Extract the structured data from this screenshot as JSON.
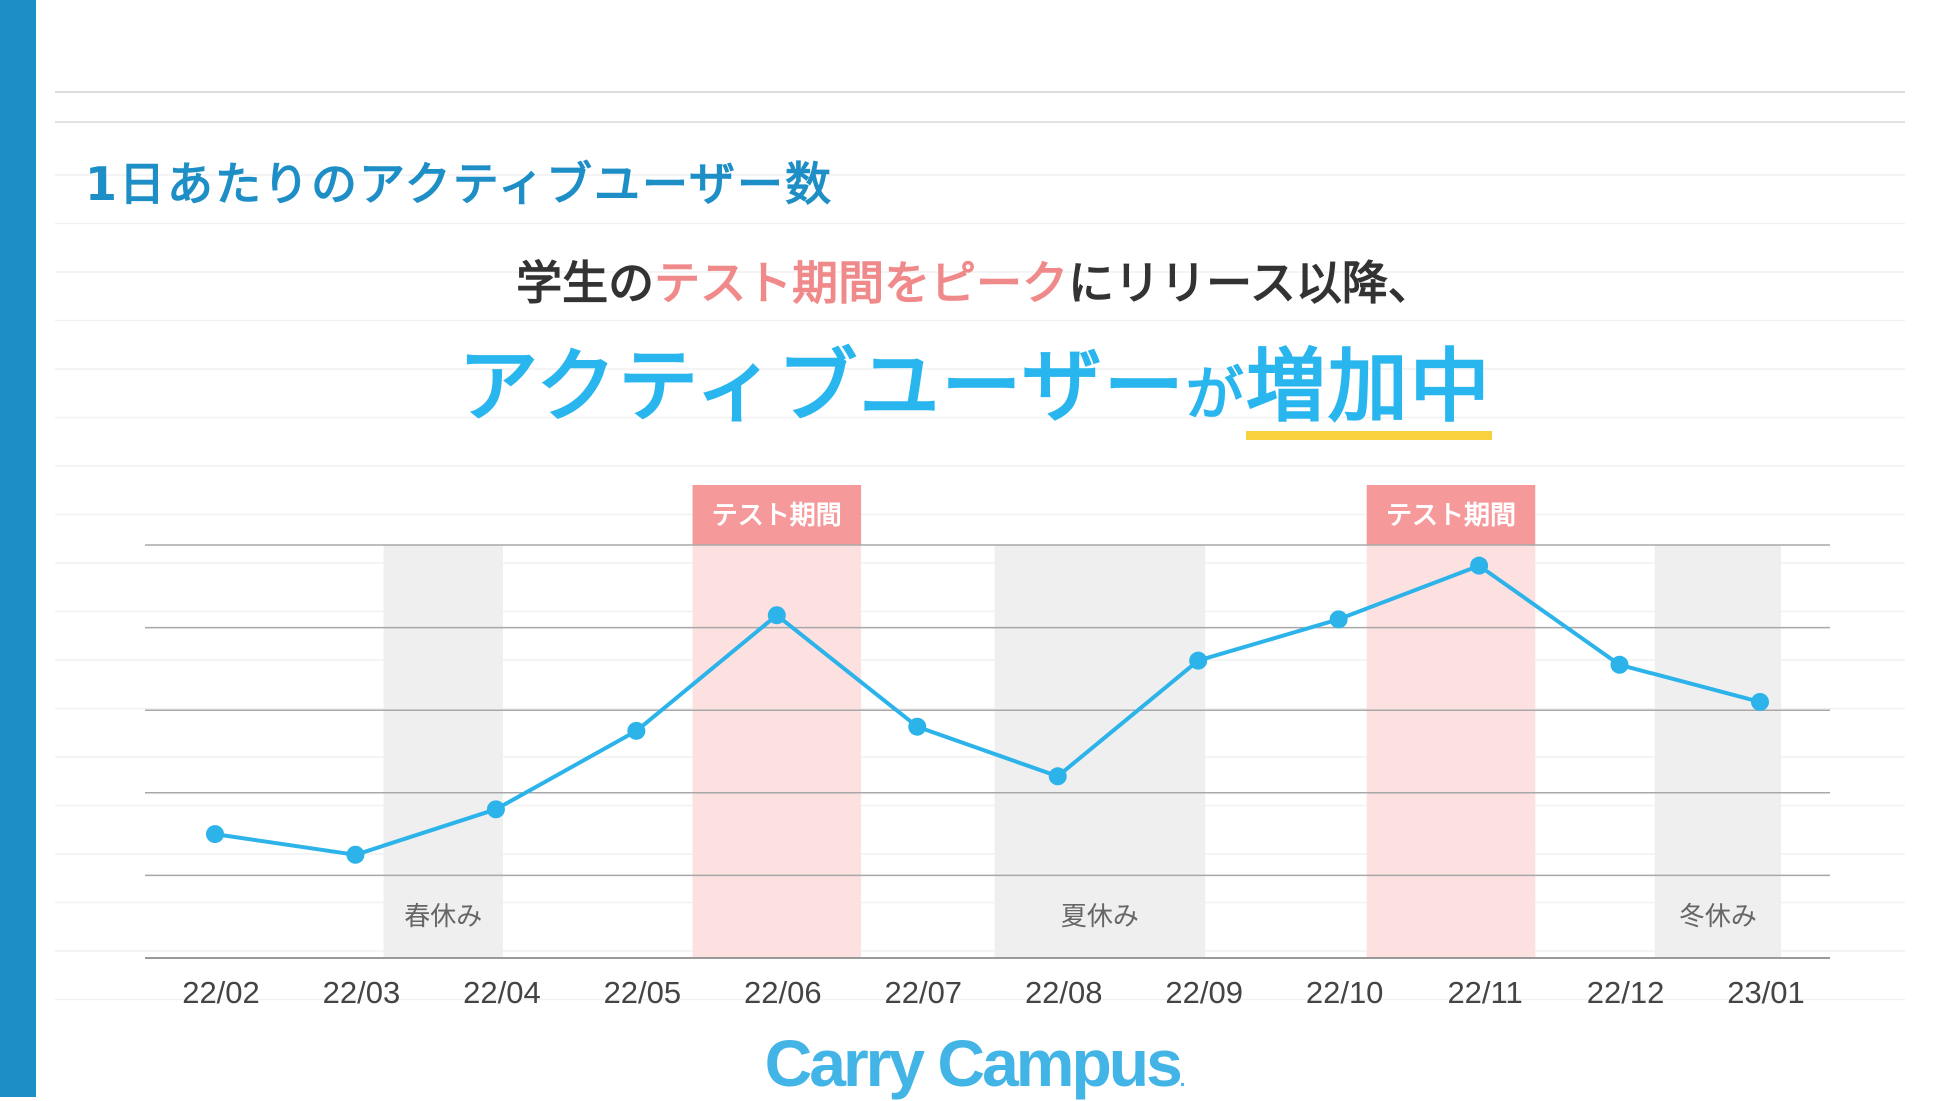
{
  "section_title": "1日あたりのアクティブユーザー数",
  "subtitle": {
    "part1": "学生の",
    "part2": "テスト期間をピーク",
    "part3": "にリリース以降、"
  },
  "headline": {
    "part1": "アクティブユーザー",
    "part2": "が",
    "part3": "増加中"
  },
  "logo": {
    "text": "Carry Campus",
    "mark": "."
  },
  "colors": {
    "accent": "#1E8FC6",
    "line": "#2BB3EA",
    "test_band": "#FDE0E0",
    "test_tag": "#F6999B",
    "holiday_band": "#EFEFEF",
    "highlight_text": "#F08A8A",
    "underline": "#F7D23E"
  },
  "chart_data": {
    "type": "line",
    "categories": [
      "22/02",
      "22/03",
      "22/04",
      "22/05",
      "22/06",
      "22/07",
      "22/08",
      "22/09",
      "22/10",
      "22/11",
      "22/12",
      "23/01"
    ],
    "series": [
      {
        "values": [
          15,
          12.5,
          18,
          27.5,
          41.5,
          28,
          22,
          36,
          41,
          47.5,
          35.5,
          31
        ]
      }
    ],
    "ylim": [
      0,
      50
    ],
    "ylabel": "",
    "xlabel": "",
    "y_tick_labels_shown": false,
    "grid": true,
    "bands": [
      {
        "kind": "holiday",
        "label": "春休み",
        "from": 1.2,
        "to": 2.05
      },
      {
        "kind": "test",
        "label": "テスト期間",
        "from": 3.4,
        "to": 4.6
      },
      {
        "kind": "holiday",
        "label": "夏休み",
        "from": 5.55,
        "to": 7.05
      },
      {
        "kind": "test",
        "label": "テスト期間",
        "from": 8.2,
        "to": 9.4
      },
      {
        "kind": "holiday",
        "label": "冬休み",
        "from": 10.25,
        "to": 11.15
      }
    ]
  }
}
